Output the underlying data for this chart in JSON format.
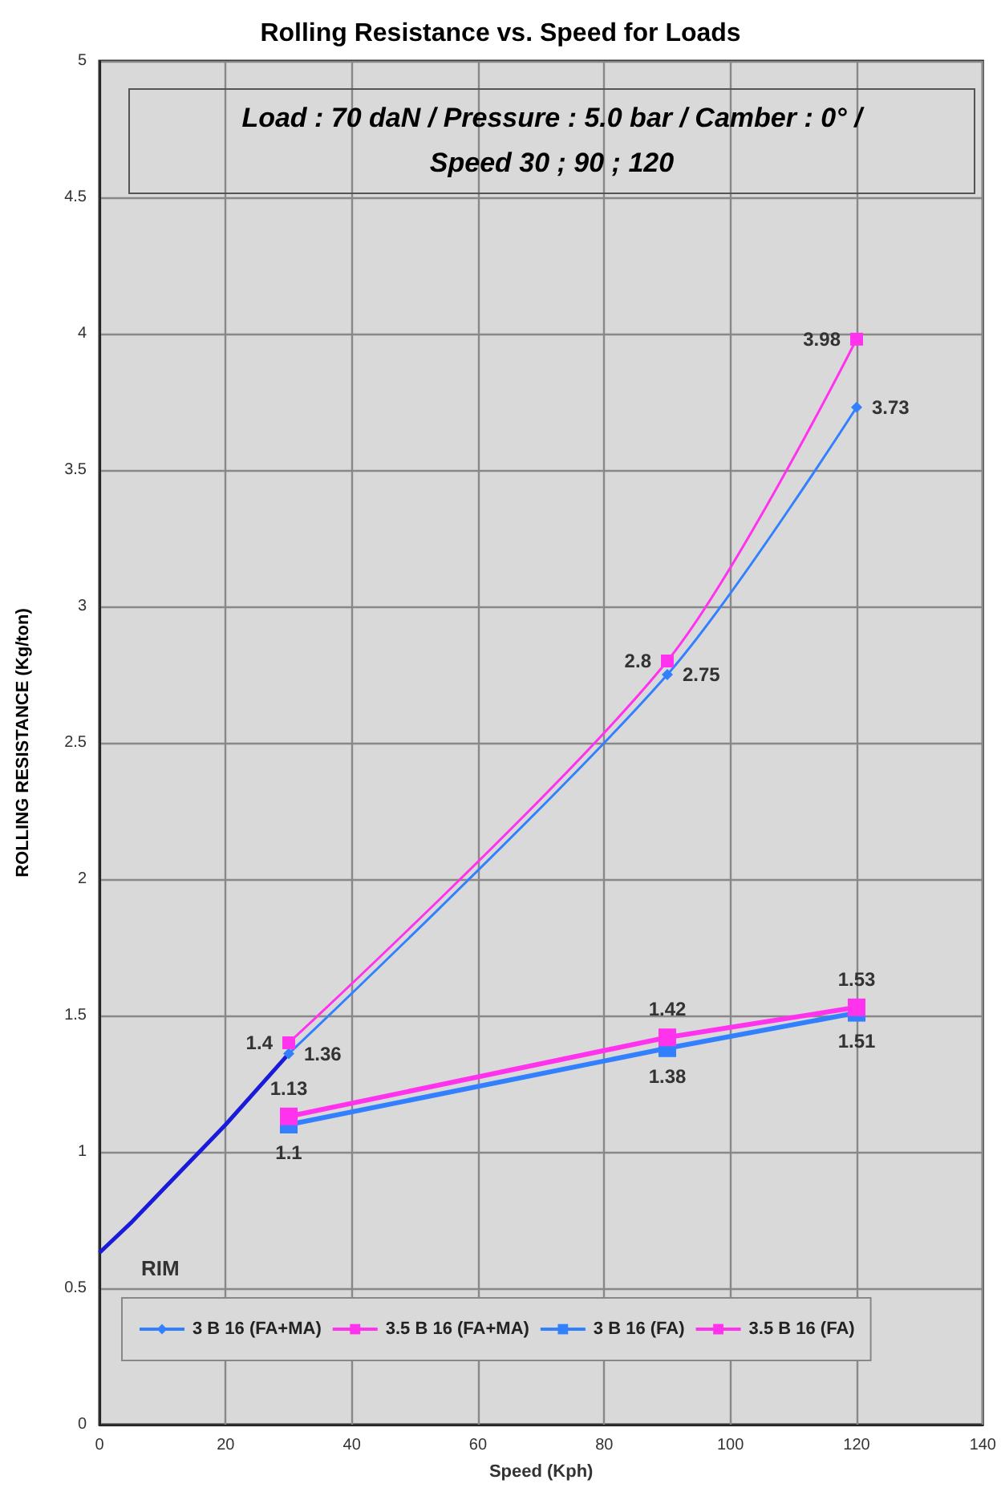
{
  "chart_data": {
    "type": "line",
    "title": "Rolling Resistance vs. Speed for Loads",
    "xlabel": "Speed (Kph)",
    "ylabel": "ROLLING RESISTANCE (Kg/ton)",
    "annotations": [
      "Load : 70 daN  /  Pressure : 5.0 bar  /  Camber : 0° /\nSpeed 30 ; 90 ; 120",
      "RIM"
    ],
    "xlim": [
      0,
      140
    ],
    "xticks": [
      0,
      20,
      40,
      60,
      80,
      100,
      120,
      140
    ],
    "ylim": [
      0,
      5
    ],
    "yticks": [
      0,
      0.5,
      1,
      1.5,
      2,
      2.5,
      3,
      3.5,
      4,
      4.5,
      5
    ],
    "grid": true,
    "legend": "bottom",
    "series": [
      {
        "name": "3 B 16 (FA+MA)",
        "color": "#3380ff",
        "x": [
          30,
          90,
          120
        ],
        "values": [
          1.36,
          2.75,
          3.73
        ],
        "marker": "diamond",
        "data_labels": true
      },
      {
        "name": "3.5 B 16 (FA+MA)",
        "color": "#ff33ee",
        "x": [
          30,
          90,
          120
        ],
        "values": [
          1.4,
          2.8,
          3.98
        ],
        "marker": "square",
        "data_labels": true
      },
      {
        "name": "3 B 16 (FA)",
        "color": "#3380ff",
        "x": [
          30,
          90,
          120
        ],
        "values": [
          1.1,
          1.38,
          1.51
        ],
        "marker": "square",
        "data_labels": true
      },
      {
        "name": "3.5 B 16 (FA)",
        "color": "#ff33ee",
        "x": [
          30,
          90,
          120
        ],
        "values": [
          1.13,
          1.42,
          1.53
        ],
        "marker": "square",
        "data_labels": true
      },
      {
        "color": "#1a1adb",
        "x": [
          0,
          5,
          10,
          15,
          20,
          25,
          30
        ],
        "values": [
          0.63,
          0.74,
          0.86,
          0.98,
          1.1,
          1.23,
          1.36
        ],
        "marker": "none"
      }
    ]
  }
}
